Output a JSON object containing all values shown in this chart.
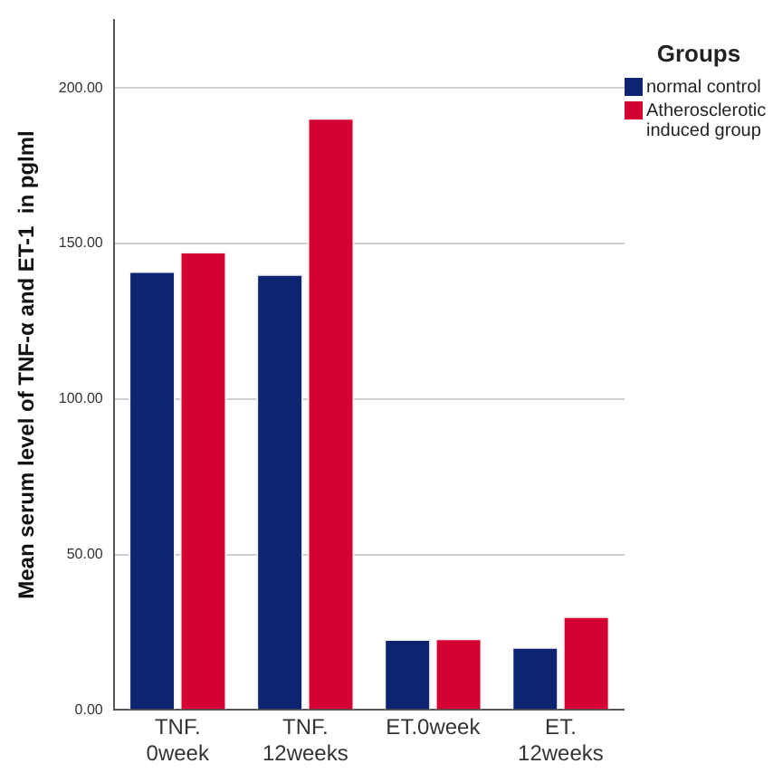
{
  "chart_data": {
    "type": "bar",
    "ylabel": "Mean serum level of TNF-α and ET-1  in pglml",
    "legend_title": "Groups",
    "categories": [
      "TNF. 0week",
      "TNF. 12weeks",
      "ET.0week",
      "ET. 12weeks"
    ],
    "series": [
      {
        "name": "normal control",
        "color": "#0d2470",
        "values": [
          141.1,
          140.2,
          22.8,
          20.3
        ]
      },
      {
        "name": "Atherosclerotic induced group",
        "color": "#d50032",
        "values": [
          147.4,
          190.4,
          23,
          30.2
        ]
      }
    ],
    "ylim": [
      0,
      222
    ],
    "yticks": [
      {
        "value": 0,
        "label": "0.00"
      },
      {
        "value": 50,
        "label": "50.00"
      },
      {
        "value": 100,
        "label": "100.00"
      },
      {
        "value": 150,
        "label": "150.00"
      },
      {
        "value": 200,
        "label": "200.00"
      }
    ],
    "grid": "y",
    "legend": "top right"
  }
}
